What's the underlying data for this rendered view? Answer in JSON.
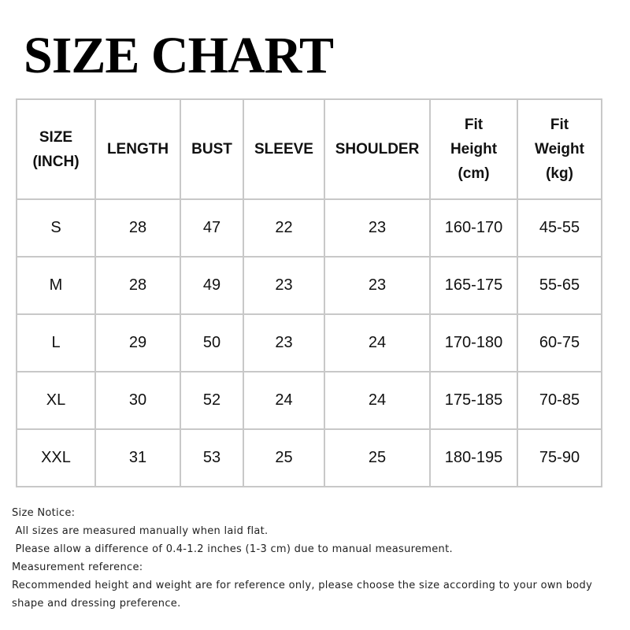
{
  "title": "SIZE CHART",
  "table": {
    "headers": [
      [
        "SIZE",
        "(INCH)"
      ],
      [
        "LENGTH"
      ],
      [
        "BUST"
      ],
      [
        "SLEEVE"
      ],
      [
        "SHOULDER"
      ],
      [
        "Fit",
        "Height",
        "(cm)"
      ],
      [
        "Fit",
        "Weight",
        "(kg)"
      ]
    ],
    "rows": [
      [
        "S",
        "28",
        "47",
        "22",
        "23",
        "160-170",
        "45-55"
      ],
      [
        "M",
        "28",
        "49",
        "23",
        "23",
        "165-175",
        "55-65"
      ],
      [
        "L",
        "29",
        "50",
        "23",
        "24",
        "170-180",
        "60-75"
      ],
      [
        "XL",
        "30",
        "52",
        "24",
        "24",
        "175-185",
        "70-85"
      ],
      [
        "XXL",
        "31",
        "53",
        "25",
        "25",
        "180-195",
        "75-90"
      ]
    ]
  },
  "notes": [
    "Size Notice:",
    " All sizes are measured manually when laid flat.",
    " Please allow a difference of 0.4-1.2 inches (1-3 cm) due to manual measurement.",
    "Measurement reference:",
    "Recommended height and weight are for reference only, please choose the size according to your own body shape and dressing preference."
  ]
}
